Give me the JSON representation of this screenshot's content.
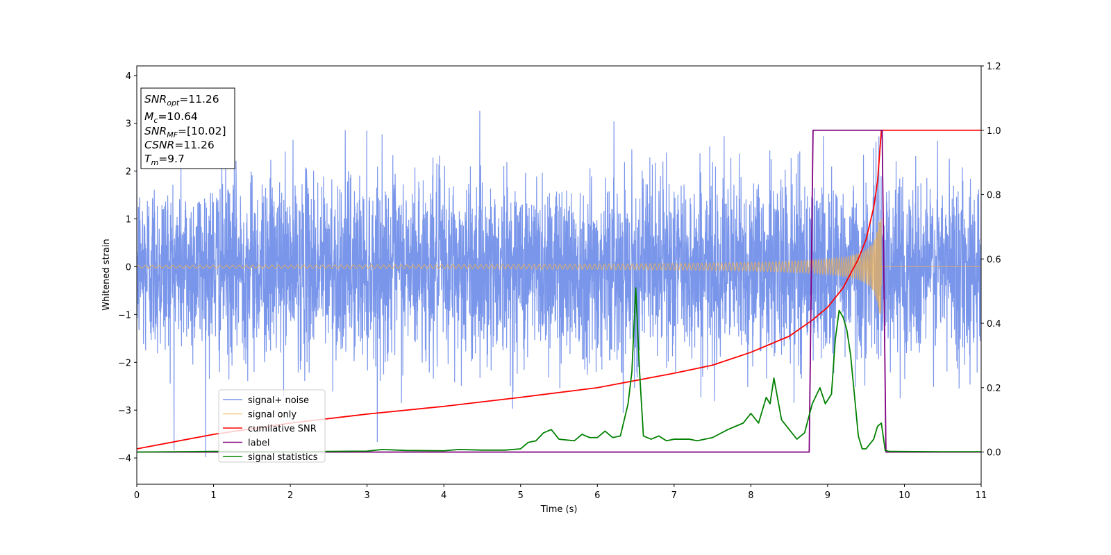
{
  "chart_data": {
    "type": "line",
    "xlabel": "Time (s)",
    "ylabel": "Whitened strain",
    "xlim": [
      0,
      11
    ],
    "ylim": [
      -4.55,
      4.2
    ],
    "ylim_right": [
      -0.1,
      1.2
    ],
    "x_ticks": [
      "0",
      "1",
      "2",
      "3",
      "4",
      "5",
      "6",
      "7",
      "8",
      "9",
      "10",
      "11"
    ],
    "y_ticks": [
      "4",
      "3",
      "2",
      "1",
      "0",
      "−1",
      "−2",
      "−3",
      "−4"
    ],
    "y_right_ticks": [
      "1.2",
      "1.0",
      "0.8",
      "0.6",
      "0.4",
      "0.2",
      "0.0"
    ],
    "grid": false,
    "legend_position": "lower-left",
    "info_box": {
      "snr_opt": {
        "main": "SNR",
        "sub": "opt",
        "val": "=11.26"
      },
      "mc": {
        "main": "M",
        "sub": "c",
        "val": "=10.64"
      },
      "snr_mf": {
        "main": "SNR",
        "sub": "MF",
        "val": "=[10.02]"
      },
      "csnr": {
        "main": "CSNR",
        "val": "=11.26"
      },
      "tm": {
        "main": "T",
        "sub": "m",
        "val": "=9.7"
      }
    },
    "series": [
      {
        "name": "signal+ noise",
        "axis": "left",
        "color": "#4169e1",
        "kind": "noise",
        "spread_std": 0.95,
        "approx_range": [
          -4.15,
          3.8
        ]
      },
      {
        "name": "signal only",
        "axis": "left",
        "color": "#f0b050",
        "kind": "chirp",
        "end_time": 9.7,
        "amplitude_start": 0.03,
        "amplitude_peak": 1.0
      },
      {
        "name": "cumilative SNR",
        "axis": "right",
        "color": "#ff0000",
        "x": [
          0,
          1,
          2,
          3,
          4,
          5,
          6,
          7,
          7.5,
          8,
          8.5,
          8.8,
          9.0,
          9.2,
          9.4,
          9.5,
          9.6,
          9.65,
          9.7,
          9.8,
          11
        ],
        "y": [
          0.01,
          0.055,
          0.09,
          0.118,
          0.142,
          0.17,
          0.2,
          0.245,
          0.27,
          0.31,
          0.36,
          0.41,
          0.45,
          0.51,
          0.6,
          0.66,
          0.76,
          0.84,
          1.0,
          1.0,
          1.0
        ]
      },
      {
        "name": "label",
        "axis": "right",
        "color": "#800080",
        "x": [
          0,
          8.76,
          8.81,
          9.71,
          9.76,
          11
        ],
        "y": [
          0,
          0,
          1,
          1,
          0,
          0
        ]
      },
      {
        "name": "signal statistics",
        "axis": "right",
        "color": "#008000",
        "x": [
          0,
          0.5,
          1,
          2,
          2.5,
          3,
          3.2,
          3.5,
          4,
          4.2,
          4.5,
          4.8,
          5.0,
          5.1,
          5.2,
          5.3,
          5.4,
          5.5,
          5.7,
          5.8,
          5.9,
          6.0,
          6.1,
          6.2,
          6.3,
          6.4,
          6.45,
          6.5,
          6.55,
          6.6,
          6.7,
          6.8,
          6.9,
          7.0,
          7.1,
          7.2,
          7.3,
          7.5,
          7.7,
          7.8,
          7.9,
          8.0,
          8.1,
          8.2,
          8.25,
          8.3,
          8.4,
          8.5,
          8.6,
          8.7,
          8.8,
          8.9,
          8.97,
          9.05,
          9.1,
          9.15,
          9.2,
          9.25,
          9.3,
          9.4,
          9.45,
          9.5,
          9.6,
          9.65,
          9.7,
          9.75,
          9.8,
          10.5,
          11
        ],
        "y": [
          0,
          0.001,
          0.002,
          0.001,
          0.002,
          0.003,
          0.008,
          0.005,
          0.004,
          0.008,
          0.006,
          0.006,
          0.01,
          0.03,
          0.035,
          0.06,
          0.07,
          0.04,
          0.035,
          0.055,
          0.045,
          0.045,
          0.065,
          0.045,
          0.05,
          0.15,
          0.25,
          0.51,
          0.25,
          0.05,
          0.04,
          0.05,
          0.035,
          0.04,
          0.04,
          0.04,
          0.035,
          0.045,
          0.07,
          0.08,
          0.09,
          0.12,
          0.09,
          0.17,
          0.15,
          0.23,
          0.1,
          0.07,
          0.04,
          0.06,
          0.15,
          0.2,
          0.15,
          0.18,
          0.35,
          0.44,
          0.42,
          0.38,
          0.3,
          0.05,
          0.01,
          0.01,
          0.04,
          0.08,
          0.09,
          0.005,
          0.002,
          0.001,
          0.001
        ]
      }
    ]
  }
}
